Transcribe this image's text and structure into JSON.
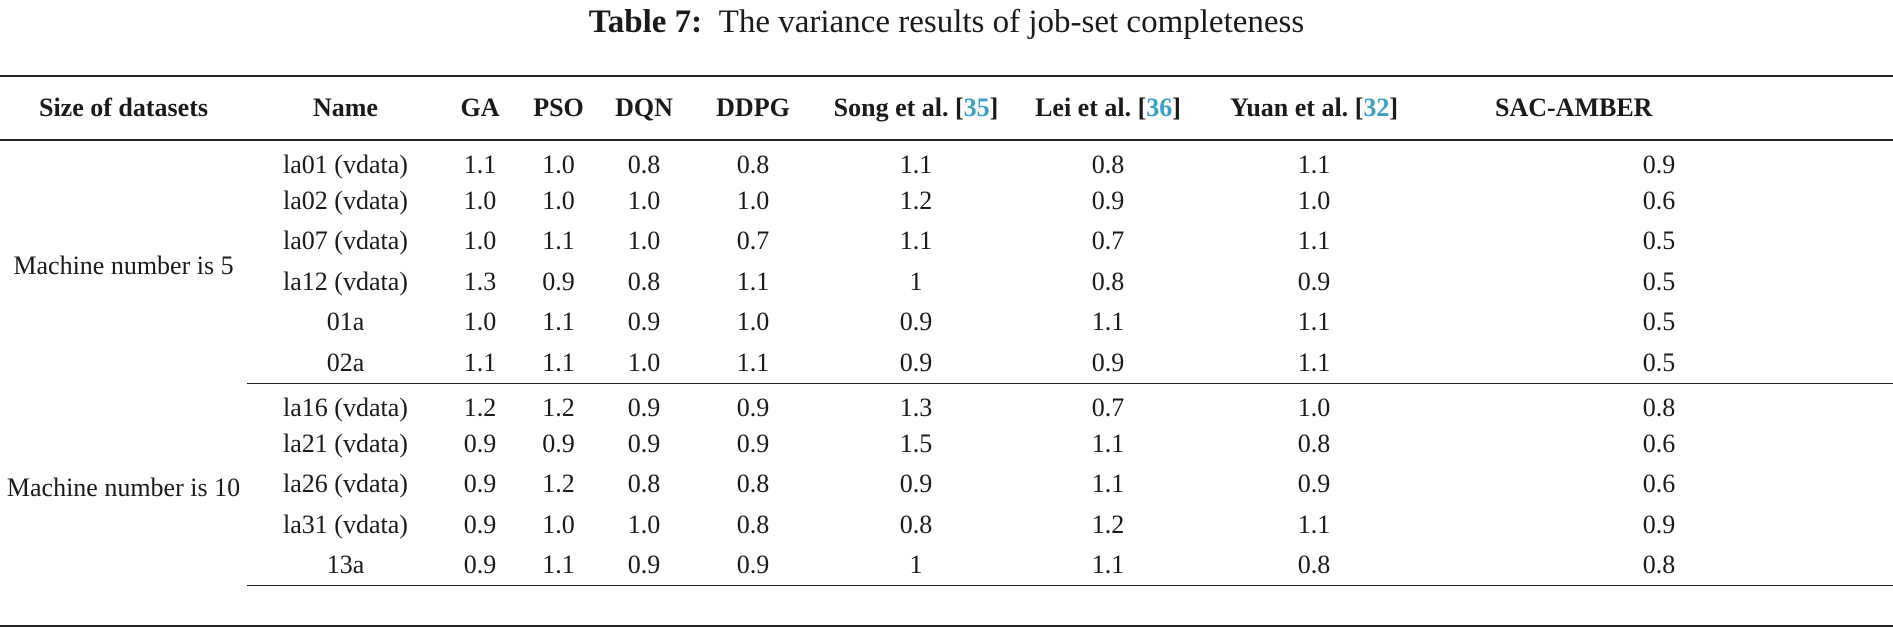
{
  "caption": {
    "label": "Table 7",
    "separator": ":",
    "text": "The variance results of job-set completeness"
  },
  "colors": {
    "text": "#1a1a1a",
    "reference_link": "#3a9fc9",
    "rules": "#222222"
  },
  "table": {
    "headers": {
      "size": "Size of datasets",
      "name": "Name",
      "ga": "GA",
      "pso": "PSO",
      "dqn": "DQN",
      "ddpg": "DDPG",
      "song": {
        "text": "Song et al. ",
        "ref": "35"
      },
      "lei": {
        "text": "Lei et al. ",
        "ref": "36"
      },
      "yuan": {
        "text": "Yuan et al. ",
        "ref": "32"
      },
      "sac": "SAC-AMBER"
    },
    "groups": [
      {
        "label": "Machine number is 5",
        "rows": [
          {
            "name": "la01 (vdata)",
            "ga": "1.1",
            "pso": "1.0",
            "dqn": "0.8",
            "ddpg": "0.8",
            "song": "1.1",
            "lei": "0.8",
            "yuan": "1.1",
            "sac": "0.9"
          },
          {
            "name": "la02 (vdata)",
            "ga": "1.0",
            "pso": "1.0",
            "dqn": "1.0",
            "ddpg": "1.0",
            "song": "1.2",
            "lei": "0.9",
            "yuan": "1.0",
            "sac": "0.6"
          },
          {
            "name": "la07 (vdata)",
            "ga": "1.0",
            "pso": "1.1",
            "dqn": "1.0",
            "ddpg": "0.7",
            "song": "1.1",
            "lei": "0.7",
            "yuan": "1.1",
            "sac": "0.5"
          },
          {
            "name": "la12 (vdata)",
            "ga": "1.3",
            "pso": "0.9",
            "dqn": "0.8",
            "ddpg": "1.1",
            "song": "1",
            "lei": "0.8",
            "yuan": "0.9",
            "sac": "0.5"
          },
          {
            "name": "01a",
            "ga": "1.0",
            "pso": "1.1",
            "dqn": "0.9",
            "ddpg": "1.0",
            "song": "0.9",
            "lei": "1.1",
            "yuan": "1.1",
            "sac": "0.5"
          },
          {
            "name": "02a",
            "ga": "1.1",
            "pso": "1.1",
            "dqn": "1.0",
            "ddpg": "1.1",
            "song": "0.9",
            "lei": "0.9",
            "yuan": "1.1",
            "sac": "0.5"
          }
        ]
      },
      {
        "label": "Machine number is 10",
        "rows": [
          {
            "name": "la16 (vdata)",
            "ga": "1.2",
            "pso": "1.2",
            "dqn": "0.9",
            "ddpg": "0.9",
            "song": "1.3",
            "lei": "0.7",
            "yuan": "1.0",
            "sac": "0.8"
          },
          {
            "name": "la21 (vdata)",
            "ga": "0.9",
            "pso": "0.9",
            "dqn": "0.9",
            "ddpg": "0.9",
            "song": "1.5",
            "lei": "1.1",
            "yuan": "0.8",
            "sac": "0.6"
          },
          {
            "name": "la26 (vdata)",
            "ga": "0.9",
            "pso": "1.2",
            "dqn": "0.8",
            "ddpg": "0.8",
            "song": "0.9",
            "lei": "1.1",
            "yuan": "0.9",
            "sac": "0.6"
          },
          {
            "name": "la31 (vdata)",
            "ga": "0.9",
            "pso": "1.0",
            "dqn": "1.0",
            "ddpg": "0.8",
            "song": "0.8",
            "lei": "1.2",
            "yuan": "1.1",
            "sac": "0.9"
          },
          {
            "name": "13a",
            "ga": "0.9",
            "pso": "1.1",
            "dqn": "0.9",
            "ddpg": "0.9",
            "song": "1",
            "lei": "1.1",
            "yuan": "0.8",
            "sac": "0.8"
          }
        ]
      }
    ]
  }
}
